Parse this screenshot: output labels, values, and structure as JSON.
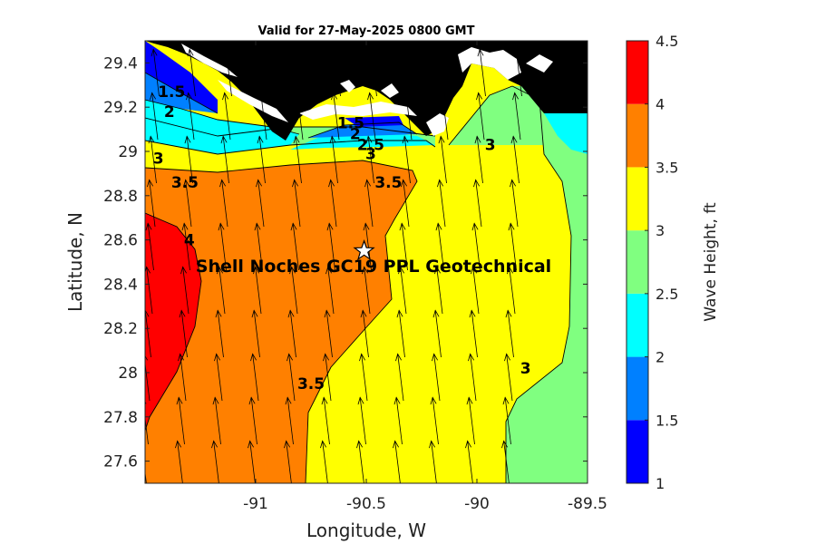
{
  "chart_data": {
    "type": "heatmap",
    "title": "Valid for 27-May-2025 0800 GMT",
    "xlabel": "Longitude, W",
    "ylabel": "Latitude, N",
    "xlim": [
      -91.5,
      -89.5
    ],
    "ylim": [
      27.5,
      29.5
    ],
    "xticks": [
      -91,
      -90.5,
      -90,
      -89.5
    ],
    "xtick_labels": [
      "-91",
      "-90.5",
      "-90",
      "-89.5"
    ],
    "yticks": [
      27.6,
      27.8,
      28,
      28.2,
      28.4,
      28.6,
      28.8,
      29,
      29.2,
      29.4
    ],
    "ytick_labels": [
      "27.6",
      "27.8",
      "28",
      "28.2",
      "28.4",
      "28.6",
      "28.8",
      "29",
      "29.2",
      "29.4"
    ],
    "colorbar": {
      "label": "Wave Height, ft",
      "levels": [
        1,
        1.5,
        2,
        2.5,
        3,
        3.5,
        4,
        4.5
      ],
      "tick_labels": [
        "1",
        "1.5",
        "2",
        "2.5",
        "3",
        "3.5",
        "4",
        "4.5"
      ],
      "colors": [
        "#0000ff",
        "#0080ff",
        "#00ffff",
        "#80ff80",
        "#ffff00",
        "#ff8000",
        "#ff0000"
      ]
    },
    "land_color": "#000000",
    "contour_labels": [
      {
        "text": "1.5",
        "lon": -91.38,
        "lat": 29.27
      },
      {
        "text": "2",
        "lon": -91.39,
        "lat": 29.18
      },
      {
        "text": "1.5",
        "lon": -90.57,
        "lat": 29.13
      },
      {
        "text": "2",
        "lon": -90.55,
        "lat": 29.08
      },
      {
        "text": "2.5",
        "lon": -90.48,
        "lat": 29.03
      },
      {
        "text": "3",
        "lon": -90.48,
        "lat": 28.99
      },
      {
        "text": "3",
        "lon": -89.94,
        "lat": 29.03
      },
      {
        "text": "3",
        "lon": -91.44,
        "lat": 28.97
      },
      {
        "text": "3.5",
        "lon": -91.32,
        "lat": 28.86
      },
      {
        "text": "3.5",
        "lon": -90.4,
        "lat": 28.86
      },
      {
        "text": "4",
        "lon": -91.3,
        "lat": 28.6
      },
      {
        "text": "3.5",
        "lon": -90.75,
        "lat": 27.95
      },
      {
        "text": "3",
        "lon": -89.78,
        "lat": 28.02
      }
    ],
    "marker": {
      "label": "Shell Noches   GC19 PPL  Geotechnical",
      "symbol": "star",
      "lon": -90.51,
      "lat": 28.55
    },
    "wave_direction_arrows": "arrows on a regular grid pointing north-northwest"
  }
}
